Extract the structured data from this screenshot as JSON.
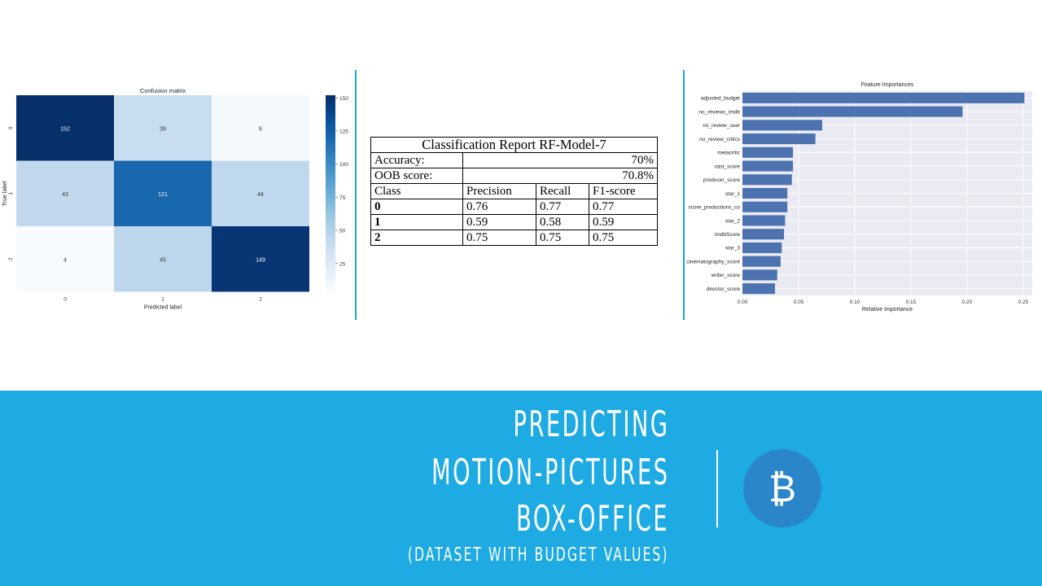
{
  "chart_data": [
    {
      "type": "heatmap",
      "title": "Confusion matrix",
      "xlabel": "Predicted label",
      "ylabel": "True label",
      "x_ticks": [
        "0",
        "1",
        "2"
      ],
      "y_ticks": [
        "0",
        "1",
        "2"
      ],
      "matrix": [
        [
          152,
          39,
          6
        ],
        [
          43,
          121,
          44
        ],
        [
          4,
          45,
          149
        ]
      ],
      "colormap": "Blues",
      "colorbar_ticks": [
        25,
        50,
        75,
        100,
        125,
        150
      ],
      "colorbar_range": [
        4,
        152
      ]
    },
    {
      "type": "table",
      "title": "Classification Report RF-Model-7",
      "accuracy_label": "Accuracy:",
      "accuracy": "70%",
      "oob_label": "OOB score:",
      "oob": "70.8%",
      "columns": [
        "Class",
        "Precision",
        "Recall",
        "F1-score"
      ],
      "rows": [
        [
          "0",
          "0.76",
          "0.77",
          "0.77"
        ],
        [
          "1",
          "0.59",
          "0.58",
          "0.59"
        ],
        [
          "2",
          "0.75",
          "0.75",
          "0.75"
        ]
      ]
    },
    {
      "type": "bar",
      "orientation": "horizontal",
      "title": "Feature Importances",
      "xlabel": "Relative Importance",
      "ylabel": "",
      "xlim": [
        0,
        0.258
      ],
      "x_ticks": [
        "0.00",
        "0.05",
        "0.10",
        "0.15",
        "0.20",
        "0.25"
      ],
      "bar_color": "#4c72b0",
      "categories": [
        "adjusted_budget",
        "no_reviews_imdb",
        "no_review_user",
        "no_review_critics",
        "metacritic",
        "cast_score",
        "producer_score",
        "star_1",
        "score_productions_co",
        "star_2",
        "imdbScore",
        "star_3",
        "cinematography_score",
        "writer_score",
        "director_score"
      ],
      "values": [
        0.251,
        0.196,
        0.071,
        0.065,
        0.045,
        0.045,
        0.044,
        0.04,
        0.04,
        0.038,
        0.037,
        0.035,
        0.034,
        0.031,
        0.029
      ]
    }
  ],
  "banner": {
    "line1": "PREDICTING",
    "line2": "MOTION-PICTURES",
    "line3": "BOX-OFFICE",
    "subtitle": "(DATASET WITH BUDGET VALUES)",
    "logo_glyph": "₿",
    "logo_icon": "bitcoin-icon",
    "background": "#1eaae2",
    "logo_color": "#2a86c9"
  }
}
